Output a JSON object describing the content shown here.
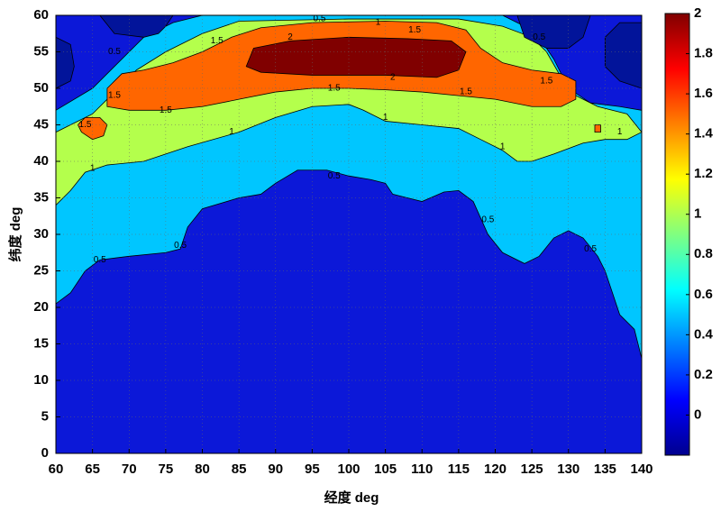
{
  "chart_data": {
    "type": "contourf",
    "xlabel": "经度 deg",
    "ylabel": "纬度 deg",
    "xlim": [
      60,
      140
    ],
    "ylim": [
      0,
      60
    ],
    "xticks": [
      60,
      65,
      70,
      75,
      80,
      85,
      90,
      95,
      100,
      105,
      110,
      115,
      120,
      125,
      130,
      135,
      140
    ],
    "yticks": [
      0,
      5,
      10,
      15,
      20,
      25,
      30,
      35,
      40,
      45,
      50,
      55,
      60
    ],
    "grid": true,
    "clim": [
      -0.2,
      2
    ],
    "cticks": [
      0,
      0.2,
      0.4,
      0.6,
      0.8,
      1,
      1.2,
      1.4,
      1.6,
      1.8,
      2
    ],
    "colormap": [
      "#00008f",
      "#0000ff",
      "#0080ff",
      "#00ffff",
      "#80ff80",
      "#ffff00",
      "#ff8000",
      "#ff0000",
      "#800000"
    ],
    "regions": [
      {
        "color": "#0c18d8",
        "x": [
          60,
          140,
          140,
          60
        ],
        "y": [
          0,
          0,
          60,
          60
        ]
      },
      {
        "color": "#00c6ff",
        "x": [
          60,
          62,
          64,
          66,
          70,
          75,
          77,
          78,
          80,
          85,
          88,
          90,
          93,
          97,
          100,
          103,
          105,
          106,
          108,
          110,
          113,
          115,
          117,
          119,
          121,
          124,
          126,
          128,
          130,
          132,
          134,
          135,
          136,
          137,
          139,
          140,
          140,
          137,
          133,
          130,
          128,
          126,
          124,
          121,
          80,
          76,
          72,
          68,
          65,
          60
        ],
        "y": [
          20.5,
          22,
          25,
          26.5,
          27,
          27.5,
          28,
          31,
          33.5,
          35,
          35.5,
          37,
          38.8,
          38.8,
          38,
          37.5,
          37,
          35.5,
          35,
          34.5,
          35.8,
          36,
          34.5,
          30,
          27.5,
          26,
          27,
          29.5,
          30.5,
          29.5,
          27,
          25,
          22,
          19,
          17,
          13,
          47,
          47.5,
          48,
          50,
          54,
          57,
          58.5,
          60,
          60,
          59,
          57,
          53,
          50,
          47
        ]
      },
      {
        "color": "#b4ff4c",
        "x": [
          60,
          62,
          64,
          67,
          72,
          78,
          85,
          90,
          95,
          100,
          102,
          105,
          110,
          115,
          118,
          121,
          123,
          125,
          128,
          132,
          135,
          138,
          140,
          138,
          134,
          131,
          129,
          127,
          125,
          121,
          115,
          100,
          85,
          80,
          75,
          71,
          68,
          65,
          62,
          60
        ],
        "y": [
          34,
          36,
          38.5,
          39.5,
          40,
          42,
          44,
          46,
          47.5,
          47.8,
          47,
          45.5,
          45,
          44.5,
          43,
          41.5,
          40,
          40,
          41,
          42.5,
          43,
          43,
          44,
          46.5,
          47.5,
          49,
          51.5,
          55,
          57,
          58.5,
          59.5,
          59.5,
          59.2,
          57.5,
          55,
          52.5,
          49.5,
          46.5,
          45,
          44
        ]
      },
      {
        "color": "#ff6600",
        "x": [
          67,
          70,
          75,
          80,
          85,
          90,
          95,
          100,
          105,
          110,
          115,
          120,
          125,
          129,
          131,
          131,
          129,
          125,
          121,
          118,
          116,
          112,
          105,
          95,
          88,
          84,
          80,
          76,
          72,
          69,
          67
        ],
        "y": [
          47.5,
          47,
          47,
          47.5,
          48.5,
          49.5,
          50,
          50,
          49.8,
          49.5,
          49,
          48.5,
          47.5,
          47.5,
          48.5,
          51,
          52,
          52.5,
          53.5,
          55.5,
          58,
          59,
          59.2,
          59,
          58.3,
          57,
          55,
          53.5,
          52.5,
          52,
          50
        ]
      },
      {
        "color": "#ff6600",
        "x": [
          63.5,
          65,
          66.5,
          67,
          66,
          64,
          63
        ],
        "y": [
          44,
          43,
          43.5,
          45,
          46,
          46,
          45
        ]
      },
      {
        "color": "#ff6600",
        "x": [
          133.6,
          134.4,
          134.4,
          133.6
        ],
        "y": [
          44,
          44,
          45,
          45
        ]
      },
      {
        "color": "#800000",
        "x": [
          86,
          88,
          95,
          105,
          112,
          115,
          116,
          114,
          108,
          100,
          92,
          87
        ],
        "y": [
          53,
          52.2,
          51.8,
          51.8,
          51.5,
          52.5,
          55,
          56.5,
          56.8,
          57,
          56.5,
          55.5
        ]
      },
      {
        "color": "#02149a",
        "x": [
          66,
          68,
          72,
          74,
          75,
          76,
          66
        ],
        "y": [
          60,
          57.5,
          57,
          57.5,
          58.5,
          60,
          60
        ]
      },
      {
        "color": "#02149a",
        "x": [
          60,
          62,
          62.5,
          62,
          60
        ],
        "y": [
          50,
          51,
          53,
          56,
          57
        ]
      },
      {
        "color": "#02149a",
        "x": [
          123,
          124,
          127,
          130,
          132,
          133
        ],
        "y": [
          60,
          57,
          55.5,
          55.5,
          57,
          60
        ]
      },
      {
        "color": "#02149a",
        "x": [
          140,
          137,
          135,
          135,
          137,
          140
        ],
        "y": [
          50,
          51,
          53,
          57,
          59,
          59
        ]
      }
    ],
    "contour_labels": [
      {
        "x": 77,
        "y": 28.5,
        "value": 0.5
      },
      {
        "x": 66,
        "y": 26.5,
        "value": 0.5
      },
      {
        "x": 98,
        "y": 38,
        "value": 0.5
      },
      {
        "x": 119,
        "y": 32,
        "value": 0.5
      },
      {
        "x": 133,
        "y": 28,
        "value": 0.5
      },
      {
        "x": 96,
        "y": 59.5,
        "value": 0.5
      },
      {
        "x": 126,
        "y": 57,
        "value": 0.5
      },
      {
        "x": 68,
        "y": 55,
        "value": 0.5
      },
      {
        "x": 65,
        "y": 39,
        "value": 1
      },
      {
        "x": 84,
        "y": 44,
        "value": 1
      },
      {
        "x": 105,
        "y": 46,
        "value": 1
      },
      {
        "x": 121,
        "y": 42,
        "value": 1
      },
      {
        "x": 137,
        "y": 44,
        "value": 1
      },
      {
        "x": 104,
        "y": 59,
        "value": 1
      },
      {
        "x": 64,
        "y": 45,
        "value": 1.5
      },
      {
        "x": 75,
        "y": 47,
        "value": 1.5
      },
      {
        "x": 98,
        "y": 50,
        "value": 1.5
      },
      {
        "x": 116,
        "y": 49.5,
        "value": 1.5
      },
      {
        "x": 127,
        "y": 51,
        "value": 1.5
      },
      {
        "x": 82,
        "y": 56.5,
        "value": 1.5
      },
      {
        "x": 109,
        "y": 58,
        "value": 1.5
      },
      {
        "x": 68,
        "y": 49,
        "value": 1.5
      },
      {
        "x": 92,
        "y": 57,
        "value": 2
      },
      {
        "x": 106,
        "y": 51.5,
        "value": 2
      }
    ]
  }
}
